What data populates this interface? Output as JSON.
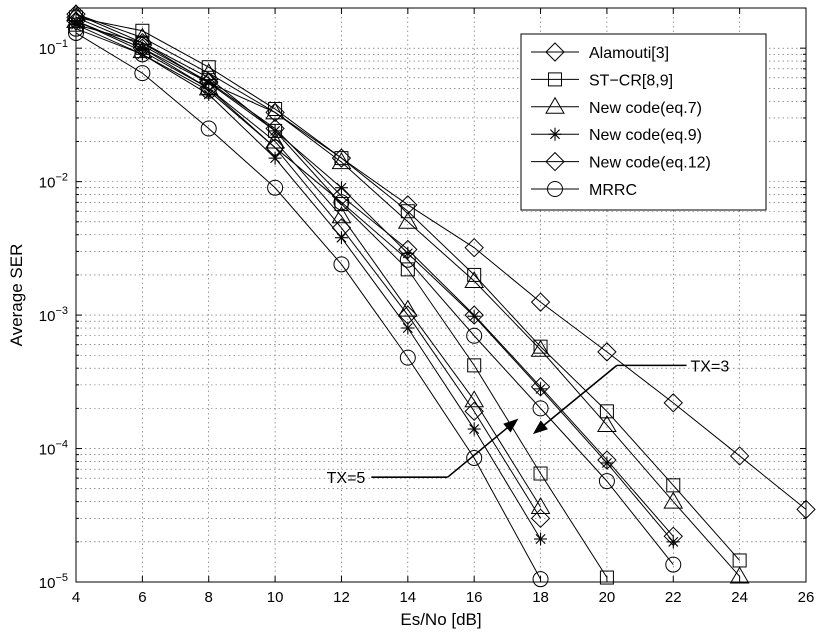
{
  "chart_data": {
    "type": "line",
    "title": "",
    "xlabel": "Es/No [dB]",
    "ylabel": "Average SER",
    "xlim": [
      4,
      26
    ],
    "ylim": [
      1e-05,
      0.2
    ],
    "yscale": "log",
    "grid": true,
    "legend_position": "top-right",
    "x_ticks": [
      4,
      6,
      8,
      10,
      12,
      14,
      16,
      18,
      20,
      22,
      24,
      26
    ],
    "x_tick_labels": [
      "4",
      "6",
      "8",
      "10",
      "12",
      "14",
      "16",
      "18",
      "20",
      "22",
      "24",
      "26"
    ],
    "y_ticks": [
      1e-05,
      0.0001,
      0.001,
      0.01,
      0.1
    ],
    "y_tick_labels": [
      {
        "base": "10",
        "exp": "−5"
      },
      {
        "base": "10",
        "exp": "−4"
      },
      {
        "base": "10",
        "exp": "−3"
      },
      {
        "base": "10",
        "exp": "−2"
      },
      {
        "base": "10",
        "exp": "−1"
      }
    ],
    "legend": [
      {
        "label": "Alamouti[3]",
        "marker": "diamond"
      },
      {
        "label": "ST−CR[8,9]",
        "marker": "square"
      },
      {
        "label": "New code(eq.7)",
        "marker": "triangle"
      },
      {
        "label": "New code(eq.9)",
        "marker": "star"
      },
      {
        "label": "New code(eq.12)",
        "marker": "diamond"
      },
      {
        "label": "MRRC",
        "marker": "circle"
      }
    ],
    "series": [
      {
        "marker": "diamond",
        "group": "Alamouti",
        "x": [
          4,
          6,
          8,
          10,
          12,
          14,
          16,
          18,
          20,
          22,
          24,
          26
        ],
        "y": [
          0.18,
          0.11,
          0.055,
          0.033,
          0.015,
          0.0067,
          0.0032,
          0.00125,
          0.00053,
          0.00022,
          8.8e-05,
          3.5e-05
        ]
      },
      {
        "marker": "square",
        "group": "TX=3",
        "x": [
          4,
          6,
          8,
          10,
          12,
          14,
          16,
          18,
          20,
          22,
          24
        ],
        "y": [
          0.17,
          0.135,
          0.072,
          0.035,
          0.015,
          0.006,
          0.002,
          0.00058,
          0.00019,
          5.3e-05,
          1.45e-05
        ]
      },
      {
        "marker": "triangle",
        "group": "TX=3",
        "x": [
          4,
          6,
          8,
          10,
          12,
          14,
          16,
          18,
          20,
          22,
          24
        ],
        "y": [
          0.18,
          0.12,
          0.065,
          0.033,
          0.014,
          0.005,
          0.0018,
          0.00055,
          0.00015,
          4e-05,
          1.1e-05
        ]
      },
      {
        "marker": "star",
        "group": "TX=3",
        "x": [
          4,
          6,
          8,
          10,
          12,
          14,
          16,
          18,
          20,
          22
        ],
        "y": [
          0.16,
          0.1,
          0.055,
          0.024,
          0.009,
          0.0029,
          0.00098,
          0.00028,
          7.8e-05,
          2e-05
        ]
      },
      {
        "marker": "diamond",
        "group": "TX=3",
        "x": [
          4,
          6,
          8,
          10,
          12,
          14,
          16,
          18,
          20,
          22
        ],
        "y": [
          0.17,
          0.105,
          0.056,
          0.025,
          0.0078,
          0.0031,
          0.001,
          0.00029,
          8.2e-05,
          2.2e-05
        ]
      },
      {
        "marker": "circle",
        "group": "TX=3",
        "x": [
          4,
          6,
          8,
          10,
          12,
          14,
          16,
          18,
          20,
          22
        ],
        "y": [
          0.14,
          0.09,
          0.048,
          0.018,
          0.007,
          0.0026,
          0.0007,
          0.0002,
          5.7e-05,
          1.35e-05
        ]
      },
      {
        "marker": "square",
        "group": "TX=5",
        "x": [
          4,
          6,
          8,
          10,
          12,
          14,
          16,
          18,
          20
        ],
        "y": [
          0.15,
          0.11,
          0.06,
          0.024,
          0.0068,
          0.0022,
          0.00042,
          6.5e-05,
          1.08e-05
        ]
      },
      {
        "marker": "triangle",
        "group": "TX=5",
        "x": [
          4,
          6,
          8,
          10,
          12,
          14,
          16,
          18
        ],
        "y": [
          0.16,
          0.095,
          0.05,
          0.02,
          0.0055,
          0.0011,
          0.00023,
          3.65e-05
        ]
      },
      {
        "marker": "star",
        "group": "TX=5",
        "x": [
          4,
          6,
          8,
          10,
          12,
          14,
          16,
          18
        ],
        "y": [
          0.15,
          0.09,
          0.045,
          0.015,
          0.0038,
          0.0008,
          0.00014,
          2.1e-05
        ]
      },
      {
        "marker": "diamond",
        "group": "TX=5",
        "x": [
          4,
          6,
          8,
          10,
          12,
          14,
          16,
          18
        ],
        "y": [
          0.16,
          0.1,
          0.05,
          0.018,
          0.0045,
          0.001,
          0.00019,
          3e-05
        ]
      },
      {
        "marker": "circle",
        "group": "TX=5",
        "x": [
          4,
          6,
          8,
          10,
          12,
          14,
          16,
          18
        ],
        "y": [
          0.13,
          0.065,
          0.025,
          0.009,
          0.0024,
          0.00048,
          8.5e-05,
          1.05e-05
        ]
      }
    ],
    "annotations": [
      {
        "text": "TX=3",
        "arrow_from": [
          20.3,
          0.00042
        ],
        "arrow_to": [
          17.8,
          0.00013
        ],
        "text_at": [
          22.4,
          0.00042
        ]
      },
      {
        "text": "TX=5",
        "arrow_from": [
          15.2,
          6.1e-05
        ],
        "arrow_to": [
          17.3,
          0.000165
        ],
        "text_at": [
          12.9,
          6.1e-05
        ]
      }
    ]
  }
}
